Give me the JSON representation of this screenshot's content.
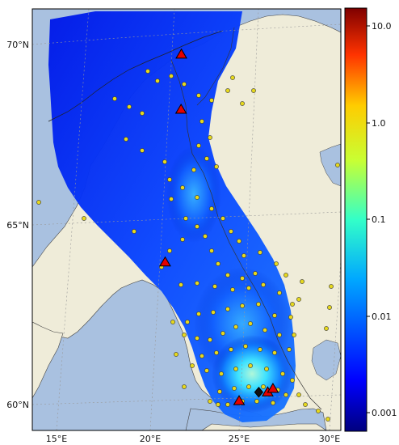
{
  "map": {
    "lat_labels": [
      "70°N",
      "65°N",
      "60°N"
    ],
    "lon_labels": [
      "15°E",
      "20°E",
      "25°E",
      "30°E"
    ],
    "colors": {
      "ocean": "#a9c1e0",
      "land": "#efecd9",
      "plume_low": "#00008f",
      "plume_high": "#00ffff",
      "station_fill": "#e6d81e",
      "triangle_fill": "#e60000",
      "diamond_fill": "#111111"
    },
    "triangles": [
      {
        "lat": 69.6,
        "lon": 20.3
      },
      {
        "lat": 68.1,
        "lon": 20.6
      },
      {
        "lat": 63.9,
        "lon": 20.3
      },
      {
        "lat": 60.1,
        "lon": 25.0
      },
      {
        "lat": 60.35,
        "lon": 26.6
      },
      {
        "lat": 60.45,
        "lon": 26.9
      }
    ],
    "source_point": {
      "lat": 60.35,
      "lon": 26.1
    }
  },
  "colorbar": {
    "scale": "log",
    "range": [
      0.0005,
      15
    ],
    "ticks": [
      "10.0",
      "1.0",
      "0.1",
      "0.01",
      "0.001"
    ],
    "colormap": "jet"
  }
}
